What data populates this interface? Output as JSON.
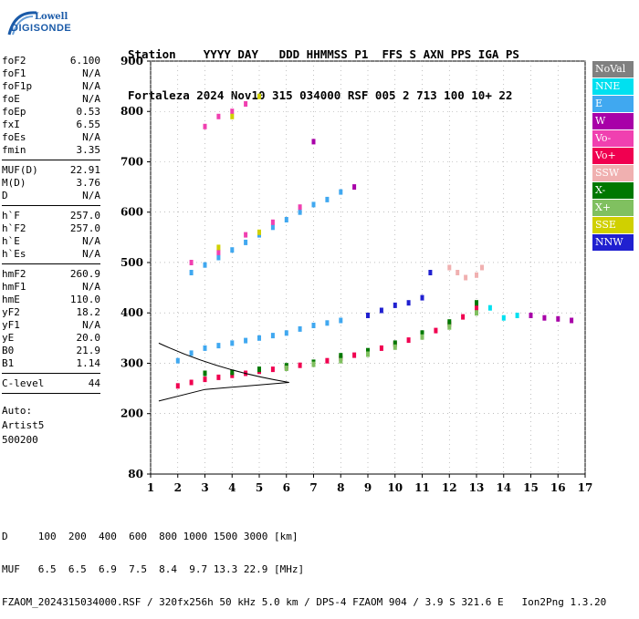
{
  "logo": {
    "line1": "Lowell",
    "line2": "DIGISONDE"
  },
  "header": {
    "line1": "Station    YYYY DAY   DDD HHMMSS P1  FFS S AXN PPS IGA PS",
    "line2": "Fortaleza 2024 Nov10 315 034000 RSF 005 2 713 100 10+ 22"
  },
  "params_group1": [
    {
      "name": "foF2",
      "value": "6.100"
    },
    {
      "name": "foF1",
      "value": "N/A"
    },
    {
      "name": "foF1p",
      "value": "N/A"
    },
    {
      "name": "foE",
      "value": "N/A"
    },
    {
      "name": "foEp",
      "value": "0.53"
    },
    {
      "name": "fxI",
      "value": "6.55"
    },
    {
      "name": "foEs",
      "value": "N/A"
    },
    {
      "name": "fmin",
      "value": "3.35"
    }
  ],
  "params_group2": [
    {
      "name": "MUF(D)",
      "value": "22.91"
    },
    {
      "name": "M(D)",
      "value": "3.76"
    },
    {
      "name": "D",
      "value": "N/A"
    }
  ],
  "params_group3": [
    {
      "name": "h`F",
      "value": "257.0"
    },
    {
      "name": "h`F2",
      "value": "257.0"
    },
    {
      "name": "h`E",
      "value": "N/A"
    },
    {
      "name": "h`Es",
      "value": "N/A"
    }
  ],
  "params_group4": [
    {
      "name": "hmF2",
      "value": "260.9"
    },
    {
      "name": "hmF1",
      "value": "N/A"
    },
    {
      "name": "hmE",
      "value": "110.0"
    },
    {
      "name": "yF2",
      "value": "18.2"
    },
    {
      "name": "yF1",
      "value": "N/A"
    },
    {
      "name": "yE",
      "value": "20.0"
    },
    {
      "name": "B0",
      "value": "21.9"
    },
    {
      "name": "B1",
      "value": "1.14"
    }
  ],
  "params_group5": [
    {
      "name": "C-level",
      "value": "44"
    }
  ],
  "autoscaling": {
    "line1": "Auto:",
    "line2": "Artist5",
    "line3": "500200"
  },
  "legend": [
    {
      "label": "NoVal",
      "color": "#808080"
    },
    {
      "label": "NNE",
      "color": "#00e0f0"
    },
    {
      "label": "E",
      "color": "#40a8f0"
    },
    {
      "label": "W",
      "color": "#a800a8"
    },
    {
      "label": "Vo-",
      "color": "#f040b0"
    },
    {
      "label": "Vo+",
      "color": "#f00050"
    },
    {
      "label": "SSW",
      "color": "#f0b0b0"
    },
    {
      "label": "X-",
      "color": "#007800"
    },
    {
      "label": "X+",
      "color": "#80c060"
    },
    {
      "label": "SSE",
      "color": "#d0d000"
    },
    {
      "label": "NNW",
      "color": "#2020d0"
    }
  ],
  "footer": {
    "line1": "D     100  200  400  600  800 1000 1500 3000 [km]",
    "line2": "MUF   6.5  6.5  6.9  7.5  8.4  9.7 13.3 22.9 [MHz]",
    "line3": "FZAOM_2024315034000.RSF / 320fx256h 50 kHz 5.0 km / DPS-4 FZAOM 904 / 3.9 S 321.6 E   Ion2Png 1.3.20"
  },
  "chart_data": {
    "type": "scatter",
    "title": "",
    "xlabel": "",
    "ylabel": "",
    "xlim": [
      1,
      17
    ],
    "ylim": [
      80,
      900
    ],
    "x_ticks": [
      1,
      2,
      3,
      4,
      5,
      6,
      7,
      8,
      9,
      10,
      11,
      12,
      13,
      14,
      15,
      16,
      17
    ],
    "y_ticks": [
      80,
      200,
      300,
      400,
      500,
      600,
      700,
      800,
      900
    ],
    "grid": true,
    "legend_position": "right",
    "series": [
      {
        "name": "Vo+",
        "color": "#f00050",
        "points": [
          [
            2.0,
            255
          ],
          [
            2.5,
            262
          ],
          [
            3.0,
            268
          ],
          [
            3.5,
            272
          ],
          [
            4.0,
            276
          ],
          [
            4.5,
            280
          ],
          [
            5.0,
            284
          ],
          [
            5.5,
            288
          ],
          [
            6.0,
            292
          ],
          [
            6.5,
            296
          ],
          [
            7.0,
            300
          ],
          [
            7.5,
            305
          ],
          [
            8.0,
            310
          ],
          [
            8.5,
            316
          ],
          [
            9.0,
            322
          ],
          [
            9.5,
            330
          ],
          [
            10.0,
            338
          ],
          [
            10.5,
            346
          ],
          [
            11.0,
            355
          ],
          [
            11.5,
            365
          ],
          [
            12.0,
            378
          ],
          [
            12.5,
            392
          ],
          [
            13.0,
            410
          ]
        ]
      },
      {
        "name": "X-",
        "color": "#007800",
        "points": [
          [
            3.0,
            280
          ],
          [
            4.0,
            282
          ],
          [
            5.0,
            288
          ],
          [
            6.0,
            295
          ],
          [
            7.0,
            302
          ],
          [
            8.0,
            315
          ],
          [
            9.0,
            325
          ],
          [
            10.0,
            340
          ],
          [
            11.0,
            360
          ],
          [
            12.0,
            382
          ],
          [
            13.0,
            420
          ]
        ]
      },
      {
        "name": "E",
        "color": "#40a8f0",
        "points": [
          [
            2.0,
            305
          ],
          [
            2.5,
            320
          ],
          [
            3.0,
            330
          ],
          [
            3.5,
            335
          ],
          [
            4.0,
            340
          ],
          [
            4.5,
            345
          ],
          [
            5.0,
            350
          ],
          [
            5.5,
            355
          ],
          [
            6.0,
            360
          ],
          [
            6.5,
            368
          ],
          [
            7.0,
            375
          ],
          [
            7.5,
            380
          ],
          [
            8.0,
            385
          ],
          [
            2.5,
            480
          ],
          [
            3.0,
            495
          ],
          [
            3.5,
            510
          ],
          [
            4.0,
            525
          ],
          [
            4.5,
            540
          ],
          [
            5.0,
            555
          ],
          [
            5.5,
            570
          ],
          [
            6.0,
            585
          ],
          [
            6.5,
            600
          ],
          [
            7.0,
            615
          ],
          [
            7.5,
            625
          ],
          [
            8.0,
            640
          ]
        ]
      },
      {
        "name": "NNW",
        "color": "#2020d0",
        "points": [
          [
            9.0,
            395
          ],
          [
            9.5,
            405
          ],
          [
            10.0,
            415
          ],
          [
            10.5,
            420
          ],
          [
            11.0,
            430
          ],
          [
            11.3,
            480
          ]
        ]
      },
      {
        "name": "SSW",
        "color": "#f0b0b0",
        "points": [
          [
            12.0,
            490
          ],
          [
            12.3,
            480
          ],
          [
            12.6,
            470
          ],
          [
            13.0,
            475
          ],
          [
            13.2,
            490
          ]
        ]
      },
      {
        "name": "W",
        "color": "#a800a8",
        "points": [
          [
            15.5,
            390
          ],
          [
            16.0,
            388
          ],
          [
            16.5,
            385
          ],
          [
            15.0,
            395
          ],
          [
            8.5,
            650
          ],
          [
            7.0,
            740
          ]
        ]
      },
      {
        "name": "Vo-",
        "color": "#f040b0",
        "points": [
          [
            3.0,
            770
          ],
          [
            3.5,
            790
          ],
          [
            4.0,
            800
          ],
          [
            4.5,
            815
          ],
          [
            2.5,
            500
          ],
          [
            3.5,
            520
          ],
          [
            4.5,
            555
          ],
          [
            5.5,
            580
          ],
          [
            6.5,
            610
          ]
        ]
      },
      {
        "name": "X+",
        "color": "#80c060",
        "points": [
          [
            6.0,
            290
          ],
          [
            7.0,
            298
          ],
          [
            8.0,
            305
          ],
          [
            9.0,
            318
          ],
          [
            10.0,
            332
          ],
          [
            11.0,
            352
          ],
          [
            12.0,
            372
          ],
          [
            13.0,
            400
          ]
        ]
      },
      {
        "name": "SSE",
        "color": "#d0d000",
        "points": [
          [
            4.0,
            790
          ],
          [
            5.0,
            830
          ],
          [
            3.5,
            530
          ],
          [
            5.0,
            560
          ]
        ]
      },
      {
        "name": "NNE",
        "color": "#00e0f0",
        "points": [
          [
            14.0,
            390
          ],
          [
            14.5,
            395
          ],
          [
            13.5,
            410
          ]
        ]
      }
    ]
  }
}
